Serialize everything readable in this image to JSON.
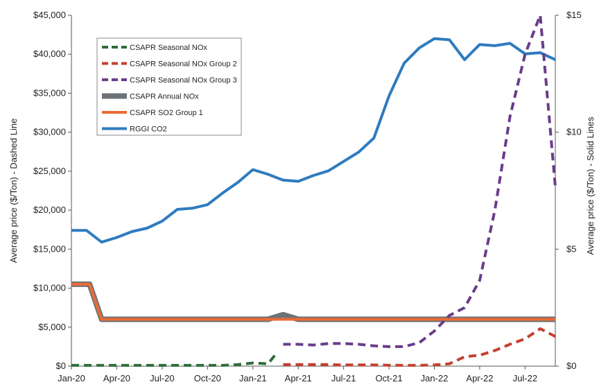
{
  "chart_data": {
    "type": "line",
    "x_ticks": [
      "Jan-20",
      "Apr-20",
      "Jul-20",
      "Oct-20",
      "Jan-21",
      "Apr-21",
      "Jul-21",
      "Oct-21",
      "Jan-22",
      "Apr-22",
      "Jul-22"
    ],
    "y_left": {
      "label": "Average price ($/Ton) - Dashed Line",
      "ticks": [
        "$0",
        "$5,000",
        "$10,000",
        "$15,000",
        "$20,000",
        "$25,000",
        "$30,000",
        "$35,000",
        "$40,000",
        "$45,000"
      ],
      "range": [
        0,
        45000
      ]
    },
    "y_right": {
      "label": "Average price ($/Ton) - Solid Lines",
      "ticks": [
        "$0",
        "$5",
        "$10",
        "$15"
      ],
      "range": [
        0,
        15
      ]
    },
    "x_range_months": [
      0,
      32
    ],
    "legend_position": "top-left",
    "series": [
      {
        "name": "CSAPR Seasonal NOx",
        "axis": "left",
        "style": "dashed",
        "color": "#2e6e3a",
        "x": [
          0,
          1,
          2,
          3,
          4,
          5,
          6,
          7,
          8,
          9,
          10,
          11,
          12,
          13,
          13.5
        ],
        "y": [
          100,
          100,
          100,
          100,
          100,
          100,
          100,
          100,
          100,
          100,
          100,
          200,
          400,
          300,
          1500
        ]
      },
      {
        "name": "CSAPR Seasonal NOx Group 2",
        "axis": "left",
        "style": "dashed",
        "color": "#c4402f",
        "x": [
          14,
          15,
          16,
          17,
          18,
          19,
          20,
          21,
          22,
          23,
          24,
          25,
          26,
          27,
          28,
          29,
          30,
          31,
          32
        ],
        "y": [
          200,
          200,
          200,
          200,
          150,
          150,
          150,
          120,
          100,
          100,
          150,
          300,
          1200,
          1400,
          2000,
          2800,
          3500,
          4800,
          3800
        ]
      },
      {
        "name": "CSAPR Seasonal NOx Group 3",
        "axis": "left",
        "style": "dashed",
        "color": "#6a3d8a",
        "x": [
          14,
          15,
          16,
          17,
          18,
          19,
          20,
          21,
          22,
          23,
          24,
          25,
          26,
          27,
          28,
          29,
          30,
          31,
          32
        ],
        "y": [
          2800,
          2800,
          2700,
          2900,
          2900,
          2800,
          2600,
          2500,
          2500,
          3000,
          4500,
          6500,
          7500,
          11000,
          20000,
          32000,
          40000,
          45000,
          23000
        ]
      },
      {
        "name": "CSAPR Annual NOx",
        "axis": "right",
        "style": "solid",
        "color": "#6e7378",
        "x": [
          0,
          1,
          1.2,
          2,
          13,
          14,
          15,
          32
        ],
        "y": [
          3.5,
          3.5,
          3.5,
          2,
          2,
          2.2,
          2,
          2
        ]
      },
      {
        "name": "CSAPR SO2 Group 1",
        "axis": "right",
        "style": "solid",
        "color": "#ec6a35",
        "x": [
          0,
          1,
          1.2,
          2,
          32
        ],
        "y": [
          3.5,
          3.5,
          3.5,
          2,
          2
        ]
      },
      {
        "name": "RGGI CO2",
        "axis": "right",
        "style": "solid",
        "color": "#2f7bbf",
        "x": [
          0,
          1,
          2,
          3,
          4,
          5,
          6,
          7,
          8,
          9,
          10,
          11,
          12,
          13,
          14,
          15,
          16,
          17,
          18,
          19,
          20,
          21,
          22,
          23,
          24,
          25,
          26,
          27,
          28,
          29,
          30,
          31,
          32
        ],
        "y": [
          5.8,
          5.8,
          5.3,
          5.5,
          5.75,
          5.9,
          6.2,
          6.7,
          6.75,
          6.9,
          7.4,
          7.85,
          8.4,
          8.2,
          7.95,
          7.9,
          8.15,
          8.35,
          8.75,
          9.15,
          9.75,
          11.55,
          12.95,
          13.6,
          14.0,
          13.95,
          13.1,
          13.75,
          13.7,
          13.8,
          13.35,
          13.4,
          13.1
        ]
      }
    ]
  }
}
